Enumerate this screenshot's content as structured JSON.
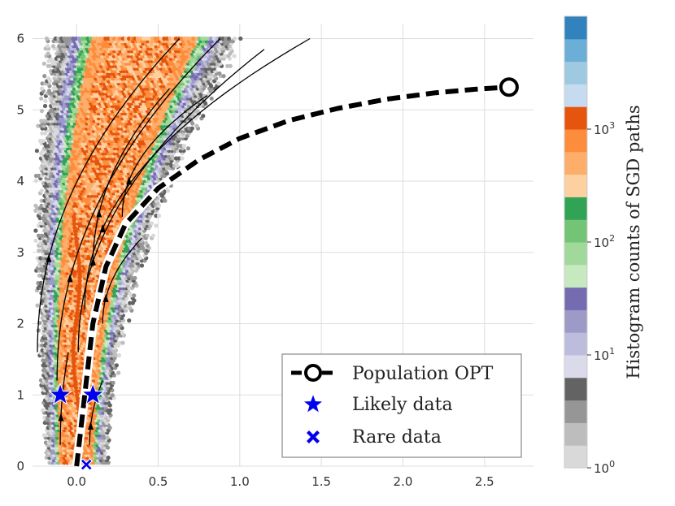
{
  "chart_data": {
    "type": "hexbin",
    "xlim": [
      -0.27,
      2.8
    ],
    "ylim": [
      0,
      6.2
    ],
    "x_ticks": [
      "0.0",
      "0.5",
      "1.0",
      "1.5",
      "2.0",
      "2.5"
    ],
    "y_ticks": [
      "0",
      "1",
      "2",
      "3",
      "4",
      "5",
      "6"
    ],
    "grid": true,
    "population_opt": {
      "name": "Population OPT",
      "x": [
        0.0,
        0.05,
        0.1,
        0.18,
        0.3,
        0.5,
        0.75,
        1.0,
        1.3,
        1.6,
        1.9,
        2.2,
        2.45,
        2.65
      ],
      "y": [
        0.0,
        1.0,
        2.0,
        2.8,
        3.4,
        3.9,
        4.3,
        4.6,
        4.85,
        5.02,
        5.15,
        5.24,
        5.29,
        5.32
      ]
    },
    "likely_data": {
      "name": "Likely data",
      "x": [
        -0.1,
        0.1
      ],
      "y": [
        1.0,
        1.0
      ]
    },
    "rare_data": {
      "name": "Rare data",
      "x": [
        0.05
      ],
      "y": [
        0.0
      ]
    },
    "histogram_colors": [
      "#d9d9d9",
      "#bdbdbd",
      "#969696",
      "#636363",
      "#dadaeb",
      "#bcbddc",
      "#9e9ac8",
      "#756bb1",
      "#c7e9c0",
      "#a1d99b",
      "#74c476",
      "#31a354",
      "#fdd0a2",
      "#fdae6b",
      "#fd8d3c",
      "#e6550d",
      "#c6dbef",
      "#9ecae1",
      "#6baed6",
      "#3182bd"
    ],
    "colorbar": {
      "label": "Histogram counts of SGD paths",
      "ticks": [
        {
          "base": "10",
          "exp": "0",
          "pos": 0.0
        },
        {
          "base": "10",
          "exp": "1",
          "pos": 0.25
        },
        {
          "base": "10",
          "exp": "2",
          "pos": 0.5
        },
        {
          "base": "10",
          "exp": "3",
          "pos": 0.75
        }
      ]
    },
    "legend": {
      "placement": "lower-right",
      "entries": [
        "Population OPT",
        "Likely data",
        "Rare data"
      ]
    }
  }
}
